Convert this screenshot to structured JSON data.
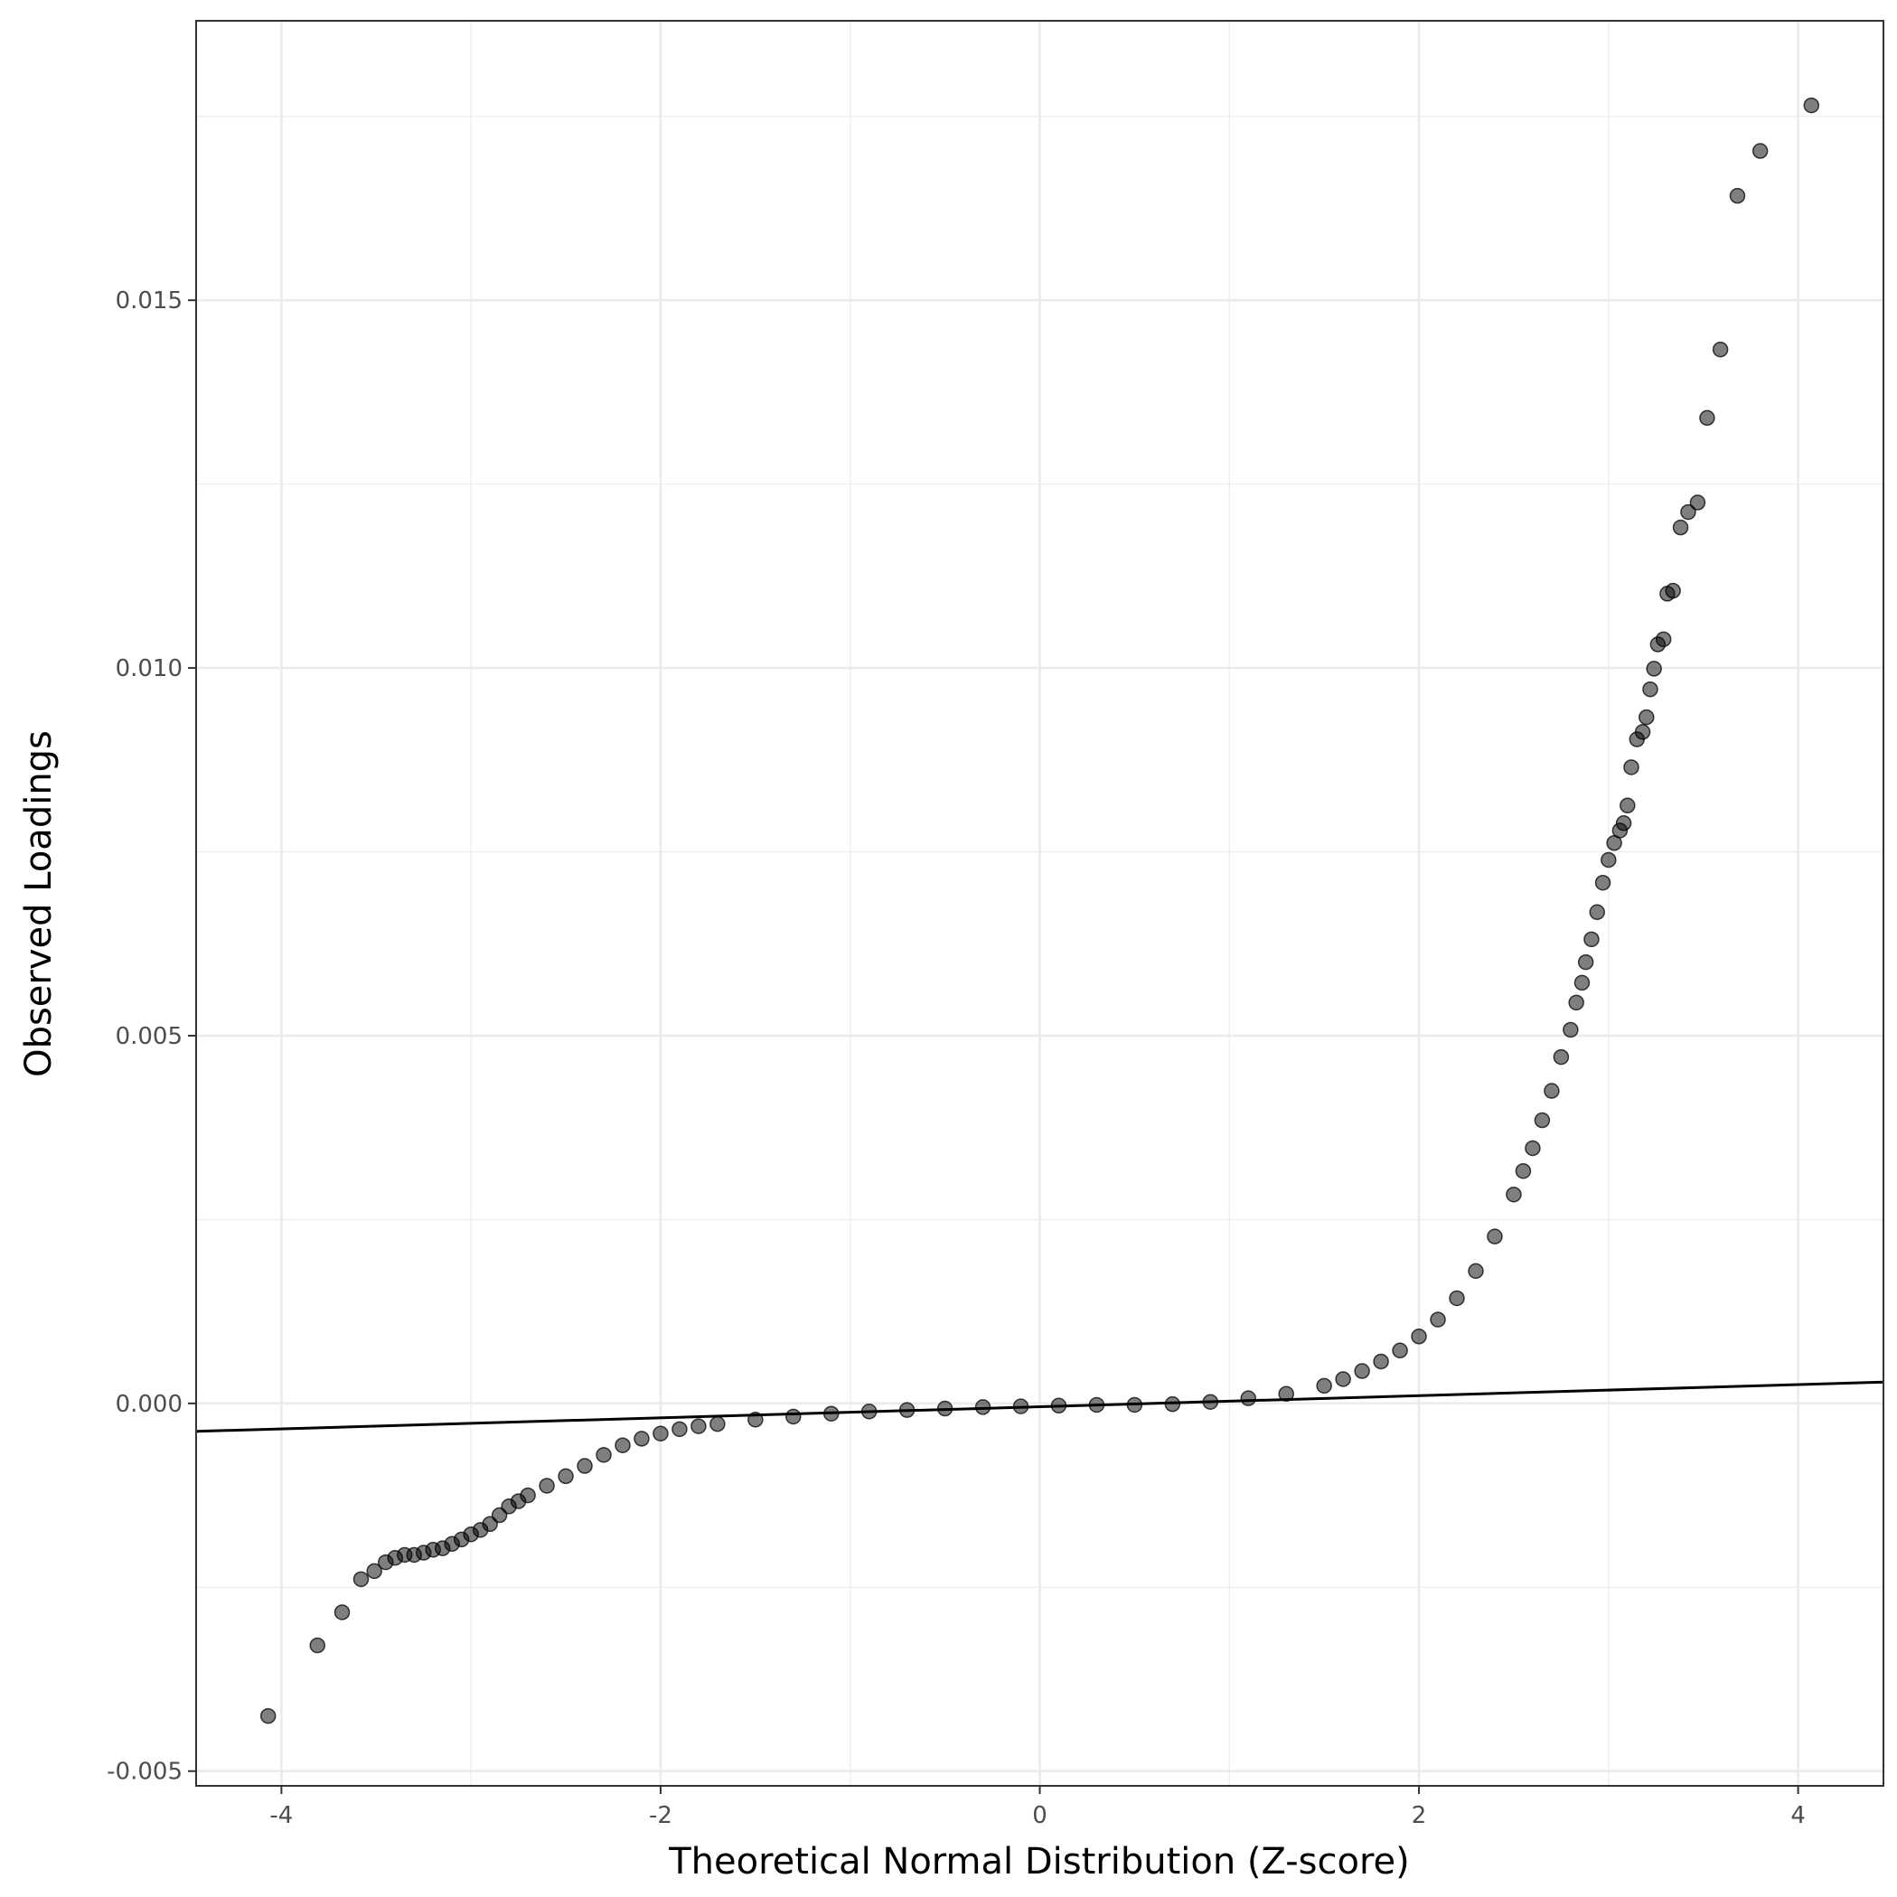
{
  "chart_data": {
    "type": "scatter",
    "title": "",
    "xlabel": "Theoretical Normal Distribution (Z-score)",
    "ylabel": "Observed Loadings",
    "xlim": [
      -4.45,
      4.45
    ],
    "ylim": [
      -0.0052,
      0.0188
    ],
    "x_ticks": [
      -4,
      -2,
      0,
      2,
      4
    ],
    "x_tick_labels": [
      "-4",
      "-2",
      "0",
      "2",
      "4"
    ],
    "y_ticks": [
      -0.005,
      0.0,
      0.005,
      0.01,
      0.015
    ],
    "y_tick_labels": [
      "-0.005",
      "0.000",
      "0.005",
      "0.010",
      "0.015"
    ],
    "grid": true,
    "legend": "none",
    "reference_line": {
      "x": [
        -4.45,
        4.45
      ],
      "y": [
        -0.00038,
        0.00029
      ]
    },
    "series": [
      {
        "points": [
          [
            -4.07,
            -0.00425
          ],
          [
            -3.81,
            -0.00329
          ],
          [
            -3.68,
            -0.00284
          ],
          [
            -3.58,
            -0.00239
          ],
          [
            -3.51,
            -0.00228
          ],
          [
            -3.45,
            -0.00216
          ],
          [
            -3.4,
            -0.0021
          ],
          [
            -3.35,
            -0.00206
          ],
          [
            -3.3,
            -0.00206
          ],
          [
            -3.25,
            -0.00203
          ],
          [
            -3.2,
            -0.00199
          ],
          [
            -3.15,
            -0.00197
          ],
          [
            -3.1,
            -0.00191
          ],
          [
            -3.05,
            -0.00185
          ],
          [
            -3.0,
            -0.00178
          ],
          [
            -2.95,
            -0.00172
          ],
          [
            -2.9,
            -0.00164
          ],
          [
            -2.85,
            -0.00152
          ],
          [
            -2.8,
            -0.0014
          ],
          [
            -2.75,
            -0.00133
          ],
          [
            -2.7,
            -0.00125
          ],
          [
            -2.6,
            -0.00112
          ],
          [
            -2.5,
            -0.00099
          ],
          [
            -2.4,
            -0.00085
          ],
          [
            -2.3,
            -0.0007
          ],
          [
            -2.2,
            -0.00057
          ],
          [
            -2.1,
            -0.00048
          ],
          [
            -2.0,
            -0.00041
          ],
          [
            -1.9,
            -0.00035
          ],
          [
            -1.8,
            -0.00031
          ],
          [
            -1.7,
            -0.00028
          ],
          [
            -1.5,
            -0.00022
          ],
          [
            -1.3,
            -0.00018
          ],
          [
            -1.1,
            -0.00014
          ],
          [
            -0.9,
            -0.00011
          ],
          [
            -0.7,
            -9e-05
          ],
          [
            -0.5,
            -7e-05
          ],
          [
            -0.3,
            -5e-05
          ],
          [
            -0.1,
            -4e-05
          ],
          [
            0.1,
            -3e-05
          ],
          [
            0.3,
            -2e-05
          ],
          [
            0.5,
            -2e-05
          ],
          [
            0.7,
            -1e-05
          ],
          [
            0.9,
            2e-05
          ],
          [
            1.1,
            7e-05
          ],
          [
            1.3,
            0.00013
          ],
          [
            1.5,
            0.00024
          ],
          [
            1.6,
            0.00033
          ],
          [
            1.7,
            0.00044
          ],
          [
            1.8,
            0.00057
          ],
          [
            1.9,
            0.00072
          ],
          [
            2.0,
            0.00091
          ],
          [
            2.1,
            0.00114
          ],
          [
            2.2,
            0.00143
          ],
          [
            2.3,
            0.0018
          ],
          [
            2.4,
            0.00227
          ],
          [
            2.5,
            0.00284
          ],
          [
            2.55,
            0.00316
          ],
          [
            2.6,
            0.00347
          ],
          [
            2.65,
            0.00385
          ],
          [
            2.7,
            0.00425
          ],
          [
            2.75,
            0.00471
          ],
          [
            2.8,
            0.00508
          ],
          [
            2.83,
            0.00545
          ],
          [
            2.86,
            0.00572
          ],
          [
            2.88,
            0.006
          ],
          [
            2.91,
            0.00631
          ],
          [
            2.94,
            0.00668
          ],
          [
            2.97,
            0.00708
          ],
          [
            3.0,
            0.00739
          ],
          [
            3.03,
            0.00762
          ],
          [
            3.06,
            0.00779
          ],
          [
            3.08,
            0.00789
          ],
          [
            3.1,
            0.00813
          ],
          [
            3.12,
            0.00865
          ],
          [
            3.15,
            0.00903
          ],
          [
            3.18,
            0.00913
          ],
          [
            3.2,
            0.00933
          ],
          [
            3.22,
            0.00971
          ],
          [
            3.24,
            0.00999
          ],
          [
            3.26,
            0.01032
          ],
          [
            3.29,
            0.01039
          ],
          [
            3.31,
            0.01101
          ],
          [
            3.34,
            0.01105
          ],
          [
            3.38,
            0.01191
          ],
          [
            3.42,
            0.01212
          ],
          [
            3.47,
            0.01225
          ],
          [
            3.52,
            0.0134
          ],
          [
            3.59,
            0.01433
          ],
          [
            3.68,
            0.01642
          ],
          [
            3.8,
            0.01703
          ],
          [
            4.07,
            0.01765
          ]
        ]
      }
    ]
  }
}
